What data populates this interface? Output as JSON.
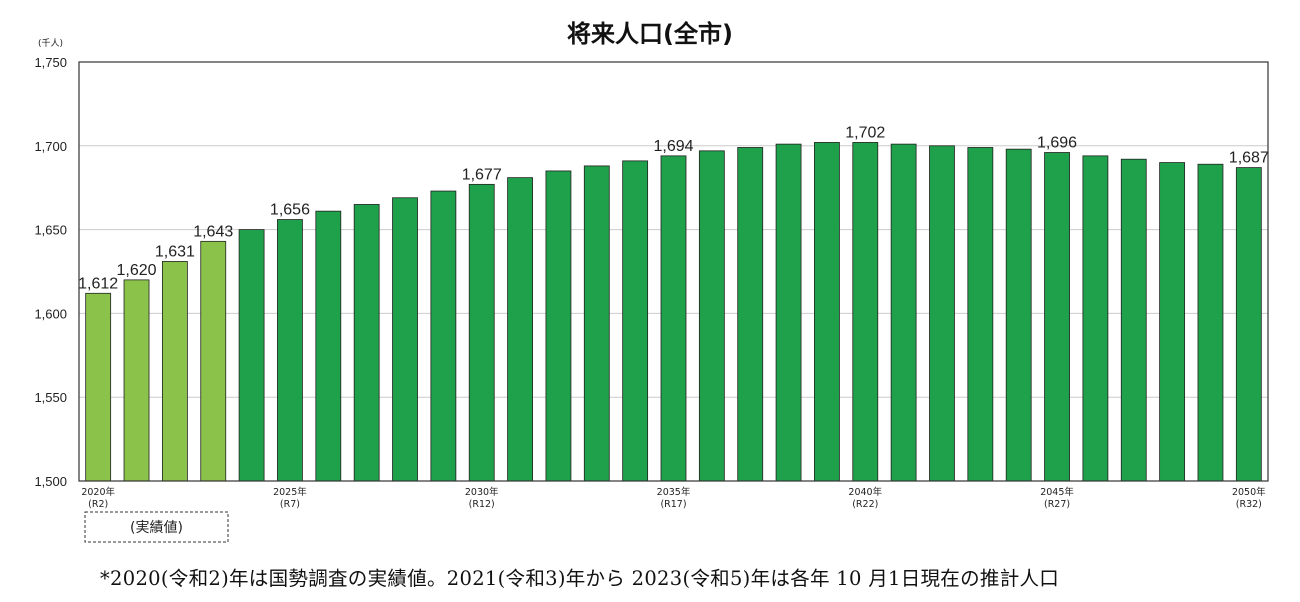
{
  "chart_data": {
    "type": "bar",
    "title": "将来人口(全市)",
    "unit_label": "(千人)",
    "ylim": [
      1500,
      1750
    ],
    "yticks": [
      1500,
      1550,
      1600,
      1650,
      1700,
      1750
    ],
    "ytick_labels": [
      "1,500",
      "1,550",
      "1,600",
      "1,650",
      "1,700",
      "1,750"
    ],
    "grid": true,
    "categories": [
      "2020",
      "2021",
      "2022",
      "2023",
      "2024",
      "2025",
      "2026",
      "2027",
      "2028",
      "2029",
      "2030",
      "2031",
      "2032",
      "2033",
      "2034",
      "2035",
      "2036",
      "2037",
      "2038",
      "2039",
      "2040",
      "2041",
      "2042",
      "2043",
      "2044",
      "2045",
      "2046",
      "2047",
      "2048",
      "2049",
      "2050"
    ],
    "values": [
      1612,
      1620,
      1631,
      1643,
      1650,
      1656,
      1661,
      1665,
      1669,
      1673,
      1677,
      1681,
      1685,
      1688,
      1691,
      1694,
      1697,
      1699,
      1701,
      1702,
      1702,
      1701,
      1700,
      1699,
      1698,
      1696,
      1694,
      1692,
      1690,
      1689,
      1687
    ],
    "value_labels": [
      "1,612",
      "1,620",
      "1,631",
      "1,643",
      "",
      "1,656",
      "",
      "",
      "",
      "",
      "1,677",
      "",
      "",
      "",
      "",
      "1,694",
      "",
      "",
      "",
      "",
      "1,702",
      "",
      "",
      "",
      "",
      "1,696",
      "",
      "",
      "",
      "",
      "1,687"
    ],
    "x_tick_labels": [
      {
        "index": 0,
        "year": "2020年",
        "era": "(R2)"
      },
      {
        "index": 5,
        "year": "2025年",
        "era": "(R7)"
      },
      {
        "index": 10,
        "year": "2030年",
        "era": "(R12)"
      },
      {
        "index": 15,
        "year": "2035年",
        "era": "(R17)"
      },
      {
        "index": 20,
        "year": "2040年",
        "era": "(R22)"
      },
      {
        "index": 25,
        "year": "2045年",
        "era": "(R27)"
      },
      {
        "index": 30,
        "year": "2050年",
        "era": "(R32)"
      }
    ],
    "actual_count": 4,
    "actual_label": "(実績値)",
    "colors": {
      "actual": "#8BC34A",
      "projected": "#1FA04A",
      "bar_edge": "#222222",
      "grid": "#cccccc",
      "frame": "#333333"
    }
  },
  "footnote": "*2020(令和2)年は国勢調査の実績値。2021(令和3)年から 2023(令和5)年は各年 10 月1日現在の推計人口"
}
